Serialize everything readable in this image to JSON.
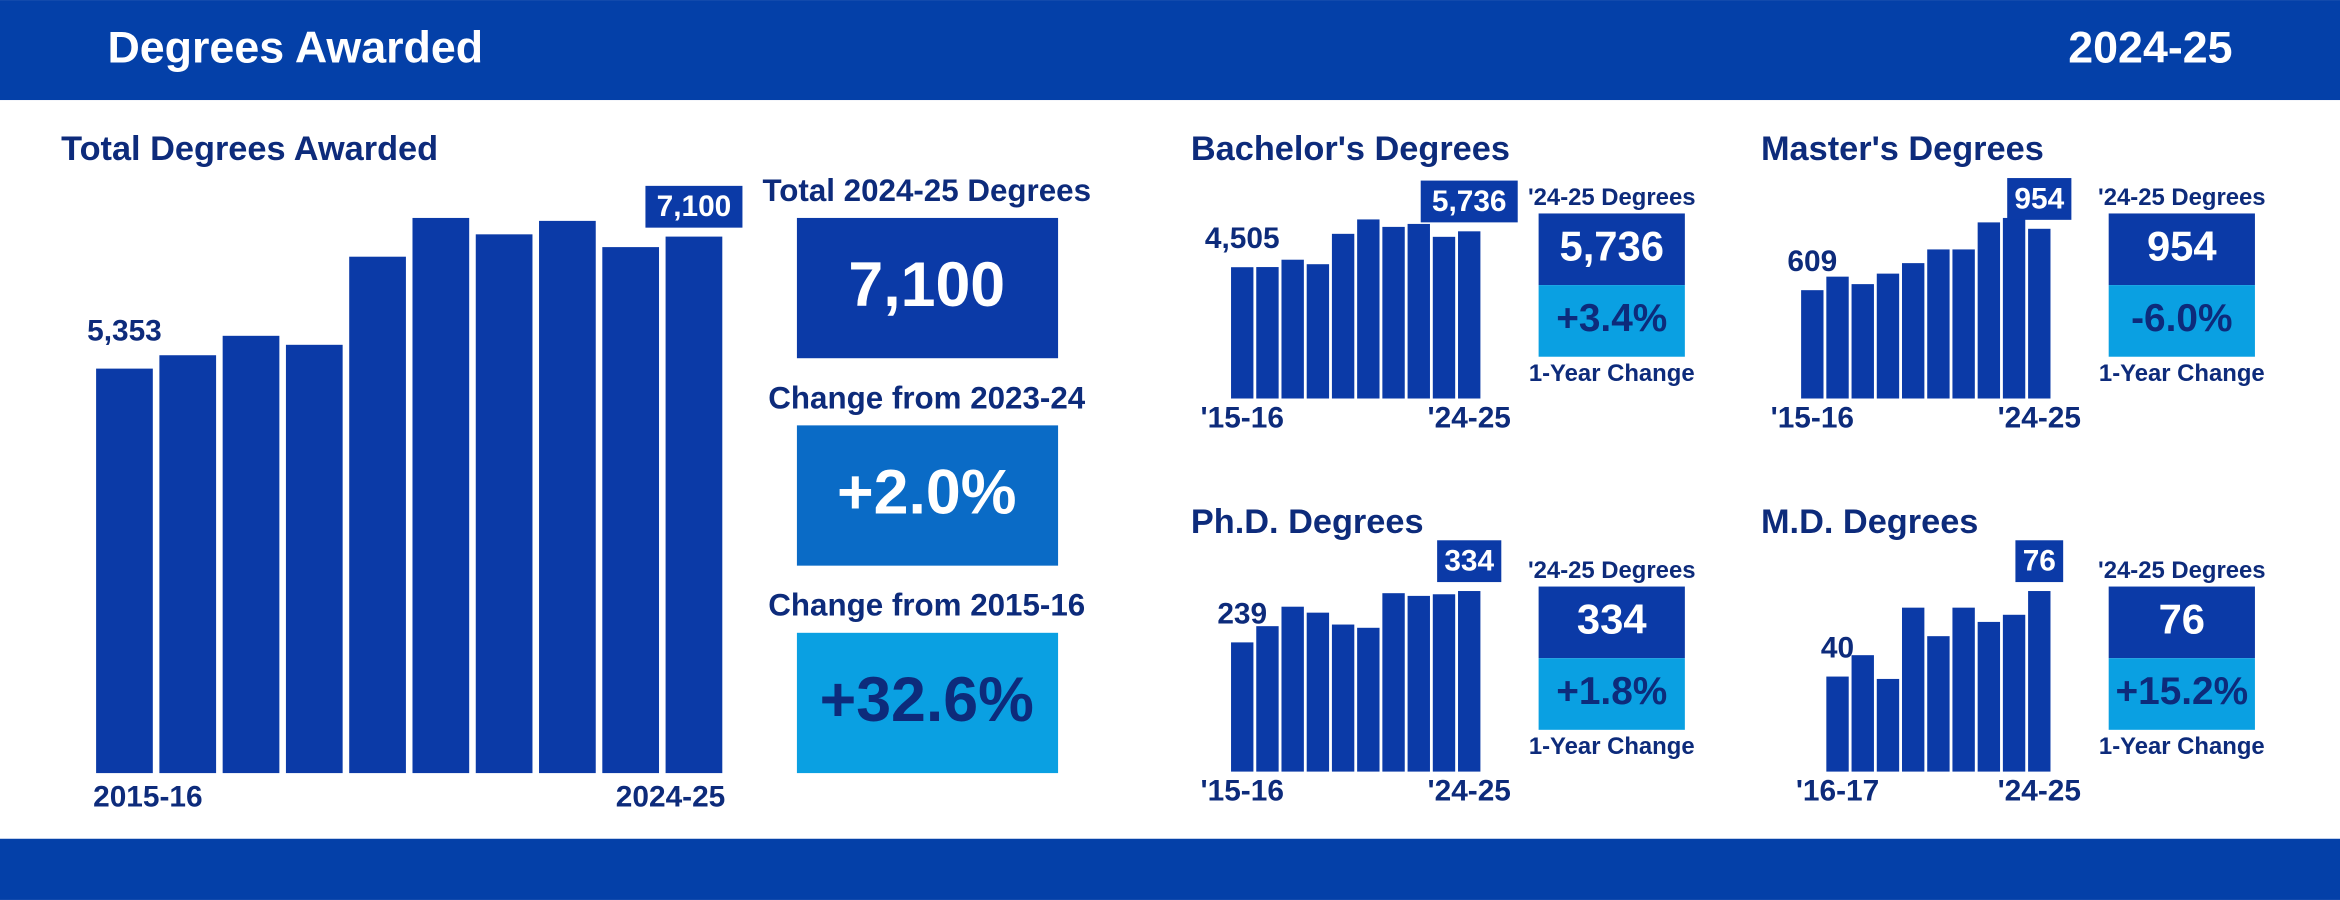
{
  "header": {
    "title": "Degrees Awarded",
    "period": "2024-25"
  },
  "summary": [
    {
      "label": "Total 2024-25 Degrees",
      "value": "7,100"
    },
    {
      "label": "Change from 2023-24",
      "value": "+2.0%"
    },
    {
      "label": "Change from 2015-16",
      "value": "+32.6%"
    }
  ],
  "chart_data": [
    {
      "type": "bar",
      "title": "Total Degrees Awarded",
      "color": "#0b3aa7",
      "categories": [
        "2015-16",
        null,
        null,
        null,
        null,
        null,
        null,
        null,
        null,
        "2024-25"
      ],
      "values": [
        5353,
        5530,
        5787,
        5668,
        6834,
        7347,
        7130,
        7308,
        6961,
        7100
      ],
      "value_labels": [
        "5,353",
        null,
        null,
        null,
        null,
        null,
        null,
        null,
        null,
        "7,100"
      ]
    },
    {
      "type": "bar",
      "title": "Bachelor's Degrees",
      "color": "#0b3aa7",
      "categories": [
        "'15-16",
        null,
        null,
        null,
        null,
        null,
        null,
        null,
        null,
        "'24-25"
      ],
      "values": [
        4505,
        4510,
        4762,
        4608,
        5650,
        6144,
        5888,
        5990,
        5547,
        5736
      ],
      "value_labels": [
        "4,505",
        null,
        null,
        null,
        null,
        null,
        null,
        null,
        null,
        "5,736"
      ],
      "kpi": {
        "label": "'24-25 Degrees",
        "value": "5,736",
        "change": "+3.4%",
        "change_label": "1-Year Change"
      }
    },
    {
      "type": "bar",
      "title": "Master's Degrees",
      "color": "#0b3aa7",
      "categories": [
        "'15-16",
        null,
        null,
        null,
        null,
        null,
        null,
        null,
        null,
        "'24-25"
      ],
      "values": [
        609,
        685,
        643,
        702,
        761,
        838,
        838,
        990,
        1015,
        954
      ],
      "value_labels": [
        "609",
        null,
        null,
        null,
        null,
        null,
        null,
        null,
        null,
        "954"
      ],
      "kpi": {
        "label": "'24-25 Degrees",
        "value": "954",
        "change": "-6.0%",
        "change_label": "1-Year Change"
      }
    },
    {
      "type": "bar",
      "title": "Ph.D. Degrees",
      "color": "#0b3aa7",
      "categories": [
        "'15-16",
        null,
        null,
        null,
        null,
        null,
        null,
        null,
        null,
        "'24-25"
      ],
      "values": [
        239,
        269,
        305,
        294,
        272,
        266,
        330,
        325,
        328,
        334
      ],
      "value_labels": [
        "239",
        null,
        null,
        null,
        null,
        null,
        null,
        null,
        null,
        "334"
      ],
      "kpi": {
        "label": "'24-25 Degrees",
        "value": "334",
        "change": "+1.8%",
        "change_label": "1-Year Change"
      }
    },
    {
      "type": "bar",
      "title": "M.D. Degrees",
      "color": "#0b3aa7",
      "categories": [
        "'16-17",
        null,
        null,
        null,
        null,
        null,
        null,
        null,
        "'24-25"
      ],
      "values": [
        40,
        49,
        39,
        69,
        57,
        69,
        63,
        66,
        76
      ],
      "value_labels": [
        "40",
        null,
        null,
        null,
        null,
        null,
        null,
        null,
        "76"
      ],
      "kpi": {
        "label": "'24-25 Degrees",
        "value": "76",
        "change": "+15.2%",
        "change_label": "1-Year Change"
      }
    }
  ]
}
